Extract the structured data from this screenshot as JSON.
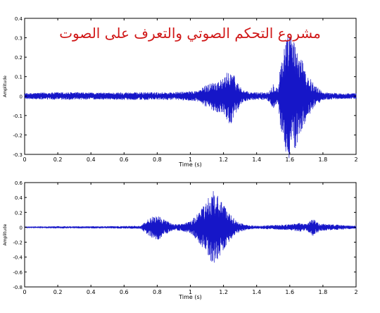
{
  "title": "مشروع التحكم الصوتي والتعرف على الصوت",
  "colors": {
    "signal": "#1616c8",
    "axis": "#000000",
    "title": "#d01818",
    "background": "#ffffff"
  },
  "chart_data": [
    {
      "type": "line",
      "title": "",
      "xlabel": "Time (s)",
      "ylabel": "Amplitude",
      "xlim": [
        0,
        2
      ],
      "ylim": [
        -0.3,
        0.4
      ],
      "xticks": [
        0,
        0.2,
        0.4,
        0.6,
        0.8,
        1,
        1.2,
        1.4,
        1.6,
        1.8,
        2
      ],
      "xtick_labels": [
        "0",
        "0.2",
        "0.4",
        "0.6",
        "0.8",
        "1",
        "1.2",
        "1.4",
        "1.6",
        "1.8",
        "2"
      ],
      "yticks": [
        -0.3,
        -0.2,
        -0.1,
        0,
        0.1,
        0.2,
        0.3,
        0.4
      ],
      "ytick_labels": [
        "-0.3",
        "-0.2",
        "-0.1",
        "0",
        "0.1",
        "0.2",
        "0.3",
        "0.4"
      ],
      "grid": false,
      "series": [
        {
          "x": [
            0,
            0.1,
            0.2,
            0.3,
            0.4,
            0.5,
            0.6,
            0.7,
            0.8,
            0.9,
            1.0,
            1.05,
            1.1,
            1.15,
            1.2,
            1.24,
            1.28,
            1.32,
            1.36,
            1.4,
            1.45,
            1.48,
            1.5,
            1.53,
            1.55,
            1.58,
            1.6,
            1.63,
            1.66,
            1.7,
            1.75,
            1.8,
            1.9,
            2.0
          ],
          "env": [
            0.015,
            0.018,
            0.02,
            0.02,
            0.018,
            0.018,
            0.02,
            0.02,
            0.02,
            0.02,
            0.025,
            0.03,
            0.06,
            0.08,
            0.09,
            0.15,
            0.08,
            0.03,
            0.02,
            0.02,
            0.02,
            0.03,
            0.07,
            0.04,
            0.22,
            0.3,
            0.34,
            0.28,
            0.22,
            0.12,
            0.06,
            0.02,
            0.015,
            0.015
          ]
        }
      ]
    },
    {
      "type": "line",
      "title": "",
      "xlabel": "Time (s)",
      "ylabel": "Amplitude",
      "xlim": [
        0,
        2
      ],
      "ylim": [
        -0.8,
        0.6
      ],
      "xticks": [
        0,
        0.2,
        0.4,
        0.6,
        0.8,
        1,
        1.2,
        1.4,
        1.6,
        1.8,
        2
      ],
      "xtick_labels": [
        "0",
        "0.2",
        "0.4",
        "0.6",
        "0.8",
        "1",
        "1.2",
        "1.4",
        "1.6",
        "1.8",
        "2"
      ],
      "yticks": [
        -0.8,
        -0.6,
        -0.4,
        -0.2,
        0,
        0.2,
        0.4,
        0.6
      ],
      "ytick_labels": [
        "-0.8",
        "-0.6",
        "-0.4",
        "-0.2",
        "0",
        "0.2",
        "0.4",
        "0.6"
      ],
      "grid": false,
      "series": [
        {
          "x": [
            0,
            0.1,
            0.2,
            0.3,
            0.5,
            0.7,
            0.72,
            0.75,
            0.8,
            0.85,
            0.88,
            0.9,
            0.95,
            1.0,
            1.05,
            1.1,
            1.13,
            1.16,
            1.2,
            1.25,
            1.3,
            1.35,
            1.4,
            1.5,
            1.6,
            1.66,
            1.7,
            1.74,
            1.78,
            1.85,
            2.0
          ],
          "env": [
            0.01,
            0.012,
            0.015,
            0.015,
            0.015,
            0.02,
            0.06,
            0.12,
            0.18,
            0.1,
            0.06,
            0.04,
            0.05,
            0.08,
            0.2,
            0.35,
            0.5,
            0.45,
            0.3,
            0.15,
            0.06,
            0.03,
            0.02,
            0.03,
            0.04,
            0.06,
            0.04,
            0.12,
            0.05,
            0.04,
            0.02
          ]
        }
      ]
    }
  ]
}
